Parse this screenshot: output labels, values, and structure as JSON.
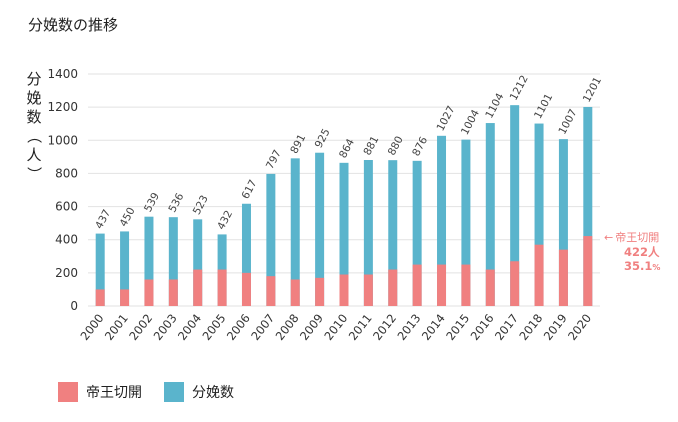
{
  "title": "分娩数の推移",
  "colors": {
    "cesarean": "#f08080",
    "deliveries": "#5ab4cc",
    "grid": "#e2e2e2",
    "annotation": "#f08080"
  },
  "legend": [
    {
      "label": "帝王切開",
      "color": "#f08080"
    },
    {
      "label": "分娩数",
      "color": "#5ab4cc"
    }
  ],
  "annotation": {
    "arrow": "←",
    "label": "帝王切開",
    "count": "422人",
    "percent_value": "35.1",
    "percent_unit": "%"
  },
  "chart_data": {
    "type": "bar",
    "title": "分娩数の推移",
    "ylabel": "分娩数（人）",
    "ylim": [
      0,
      1400
    ],
    "yticks": [
      0,
      200,
      400,
      600,
      800,
      1000,
      1200,
      1400
    ],
    "grid": true,
    "legend_position": "bottom-left",
    "categories": [
      "2000",
      "2001",
      "2002",
      "2003",
      "2004",
      "2005",
      "2006",
      "2007",
      "2008",
      "2009",
      "2010",
      "2011",
      "2012",
      "2013",
      "2014",
      "2015",
      "2016",
      "2017",
      "2018",
      "2019",
      "2020"
    ],
    "series": [
      {
        "name": "分娩数",
        "values": [
          437,
          450,
          539,
          536,
          523,
          432,
          617,
          797,
          891,
          925,
          864,
          881,
          880,
          876,
          1027,
          1004,
          1104,
          1212,
          1101,
          1007,
          1201
        ]
      },
      {
        "name": "帝王切開",
        "values": [
          100,
          100,
          160,
          160,
          220,
          220,
          200,
          180,
          160,
          170,
          190,
          190,
          220,
          250,
          250,
          250,
          220,
          270,
          370,
          340,
          422
        ]
      }
    ],
    "data_labels": [
      "437",
      "450",
      "539",
      "536",
      "523",
      "432",
      "617",
      "797",
      "891",
      "925",
      "864",
      "881",
      "880",
      "876",
      "1027",
      "1004",
      "1104",
      "1212",
      "1101",
      "1007",
      "1201"
    ]
  }
}
